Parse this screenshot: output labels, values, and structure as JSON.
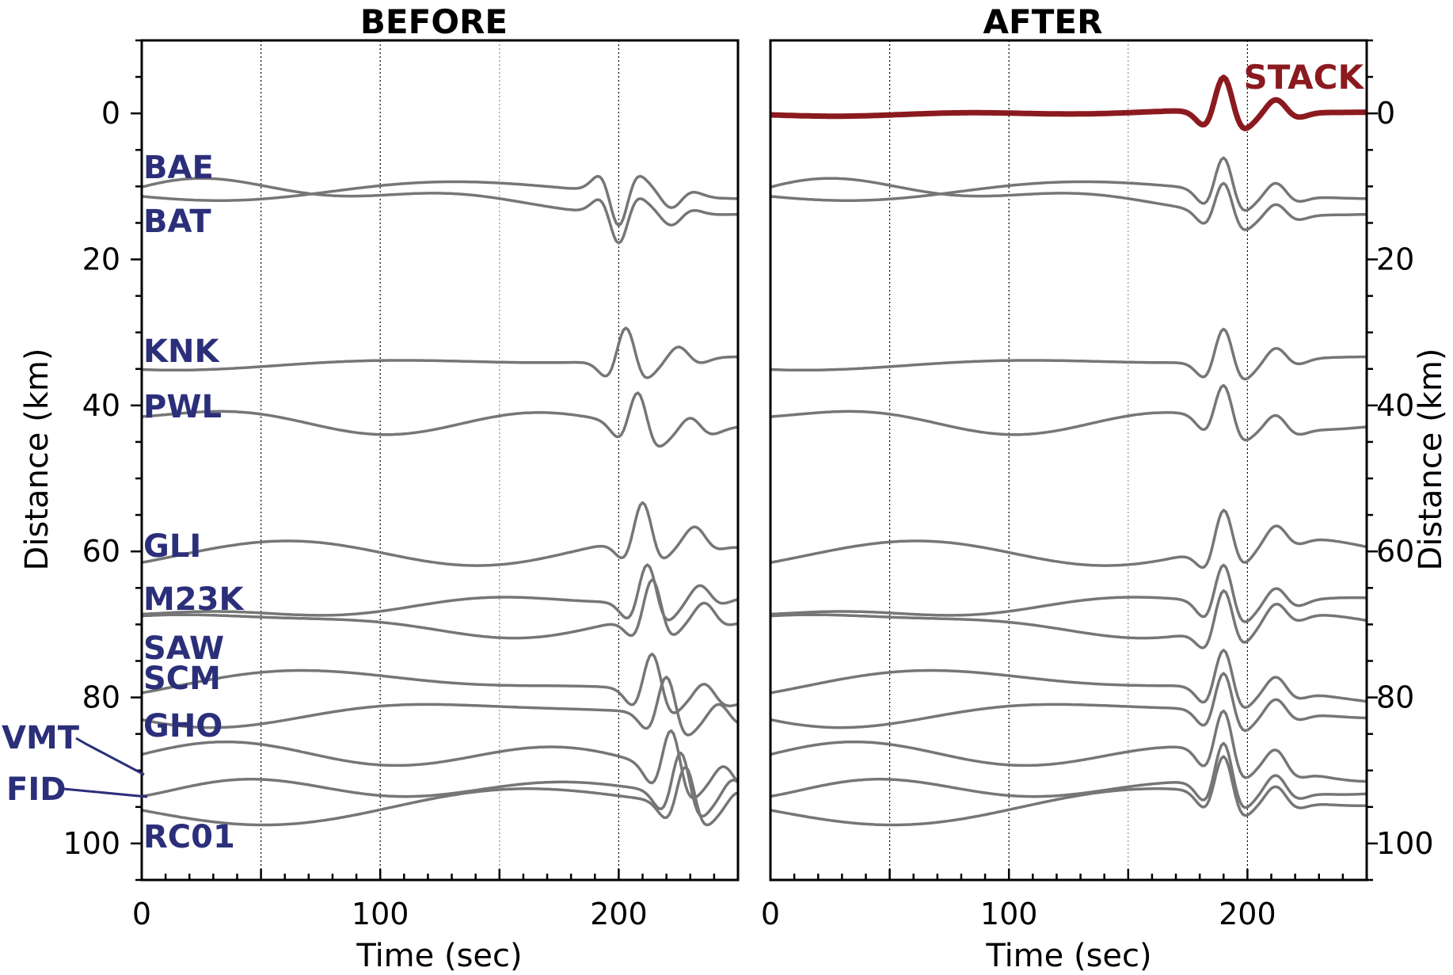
{
  "chart_data": [
    {
      "type": "line",
      "title": "BEFORE",
      "xlabel": "Time (sec)",
      "ylabel": "Distance (km)",
      "xlim": [
        0,
        250
      ],
      "ylim": [
        105,
        -10
      ],
      "x_ticks": [
        0,
        100,
        200
      ],
      "y_ticks": [
        0,
        20,
        40,
        60,
        80,
        100
      ],
      "grid": "vertical dotted at 50, 100, 150, 200",
      "series": [
        {
          "name": "BAE",
          "distance": 10.5,
          "pulse_time": 200,
          "polarity": -1,
          "amplitude": 4.5
        },
        {
          "name": "BAT",
          "distance": 11.5,
          "pulse_time": 200,
          "polarity": -1,
          "amplitude": 4.0
        },
        {
          "name": "KNK",
          "distance": 34,
          "pulse_time": 203,
          "polarity": 1,
          "amplitude": 4.5
        },
        {
          "name": "PWL",
          "distance": 42,
          "pulse_time": 208,
          "polarity": 1,
          "amplitude": 4.5
        },
        {
          "name": "GLI",
          "distance": 61,
          "pulse_time": 210,
          "polarity": 1,
          "amplitude": 5.0
        },
        {
          "name": "M23K",
          "distance": 67.5,
          "pulse_time": 212,
          "polarity": 1,
          "amplitude": 5.0
        },
        {
          "name": "SAW",
          "distance": 69.5,
          "pulse_time": 214,
          "polarity": 1,
          "amplitude": 5.0
        },
        {
          "name": "SCM",
          "distance": 79,
          "pulse_time": 214,
          "polarity": 1,
          "amplitude": 5.0
        },
        {
          "name": "GHO",
          "distance": 82,
          "pulse_time": 220,
          "polarity": 1,
          "amplitude": 5.0
        },
        {
          "name": "VMT",
          "distance": 88.5,
          "pulse_time": 222,
          "polarity": 1,
          "amplitude": 5.5
        },
        {
          "name": "FID",
          "distance": 92.5,
          "pulse_time": 226,
          "polarity": 1,
          "amplitude": 5.5
        },
        {
          "name": "RC01",
          "distance": 94.5,
          "pulse_time": 228,
          "polarity": 1,
          "amplitude": 5.0
        }
      ]
    },
    {
      "type": "line",
      "title": "AFTER",
      "xlabel": "Time (sec)",
      "ylabel": "Distance (km)",
      "xlim": [
        0,
        250
      ],
      "ylim": [
        105,
        -10
      ],
      "x_ticks": [
        0,
        100,
        200
      ],
      "y_ticks": [
        0,
        20,
        40,
        60,
        80,
        100
      ],
      "grid": "vertical dotted at 50, 100, 150, 200",
      "aligned_pulse_time": 190,
      "stack": {
        "name": "STACK",
        "distance": 0,
        "pulse_time": 190,
        "amplitude": 4.5,
        "color": "#8b1a1f"
      },
      "series": [
        {
          "name": "BAE",
          "distance": 10.5
        },
        {
          "name": "BAT",
          "distance": 11.5
        },
        {
          "name": "KNK",
          "distance": 34
        },
        {
          "name": "PWL",
          "distance": 42
        },
        {
          "name": "GLI",
          "distance": 61
        },
        {
          "name": "M23K",
          "distance": 67.5
        },
        {
          "name": "SAW",
          "distance": 69.5
        },
        {
          "name": "SCM",
          "distance": 79
        },
        {
          "name": "GHO",
          "distance": 82
        },
        {
          "name": "VMT",
          "distance": 88.5
        },
        {
          "name": "FID",
          "distance": 92.5
        },
        {
          "name": "RC01",
          "distance": 94.5
        }
      ]
    }
  ],
  "colors": {
    "station_label": "#2b2f7a",
    "trace": "#767676",
    "stack": "#8b1a1f"
  }
}
